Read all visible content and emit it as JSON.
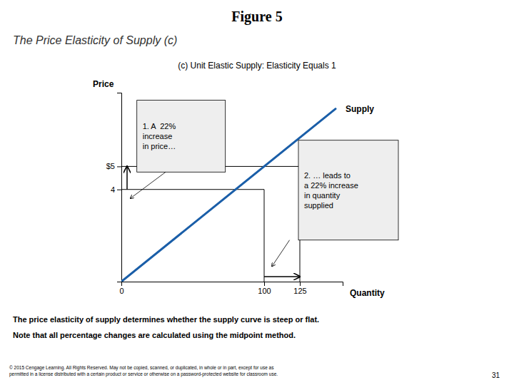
{
  "chart_data": {
    "type": "line",
    "figure_title": "Figure 5",
    "subtitle": "The Price Elasticity of Supply (c)",
    "title": "(c) Unit Elastic Supply: Elasticity Equals 1",
    "xlabel": "Quantity",
    "ylabel": "Price",
    "x": [
      0,
      150
    ],
    "series": [
      {
        "name": "Supply",
        "color": "#1a5ea8",
        "values": [
          0,
          7.5
        ]
      }
    ],
    "xlim": [
      0,
      155
    ],
    "ylim": [
      0,
      8.2
    ],
    "xticks": [
      0,
      100,
      125
    ],
    "yticks": [
      4,
      {
        "value": 5,
        "label": "$5"
      }
    ],
    "grid": false,
    "reference_points": {
      "x": [
        100,
        125
      ],
      "y": [
        4,
        5
      ]
    },
    "annotations": [
      "1. A  22%\nincrease\nin price…",
      "2. … leads to\na 22% increase\nin quantity\nsupplied"
    ],
    "notes": [
      "The price elasticity of supply determines whether the supply curve is steep or flat.",
      "Note that all percentage changes are calculated using the midpoint method."
    ],
    "footer": "© 2015 Cengage Learning. All Rights Reserved. May not be copied, scanned, or duplicated, in whole or in part, except for use as\npermitted in a license distributed with a certain product or service or otherwise on a password-protected website for classroom use.",
    "page": "31"
  }
}
